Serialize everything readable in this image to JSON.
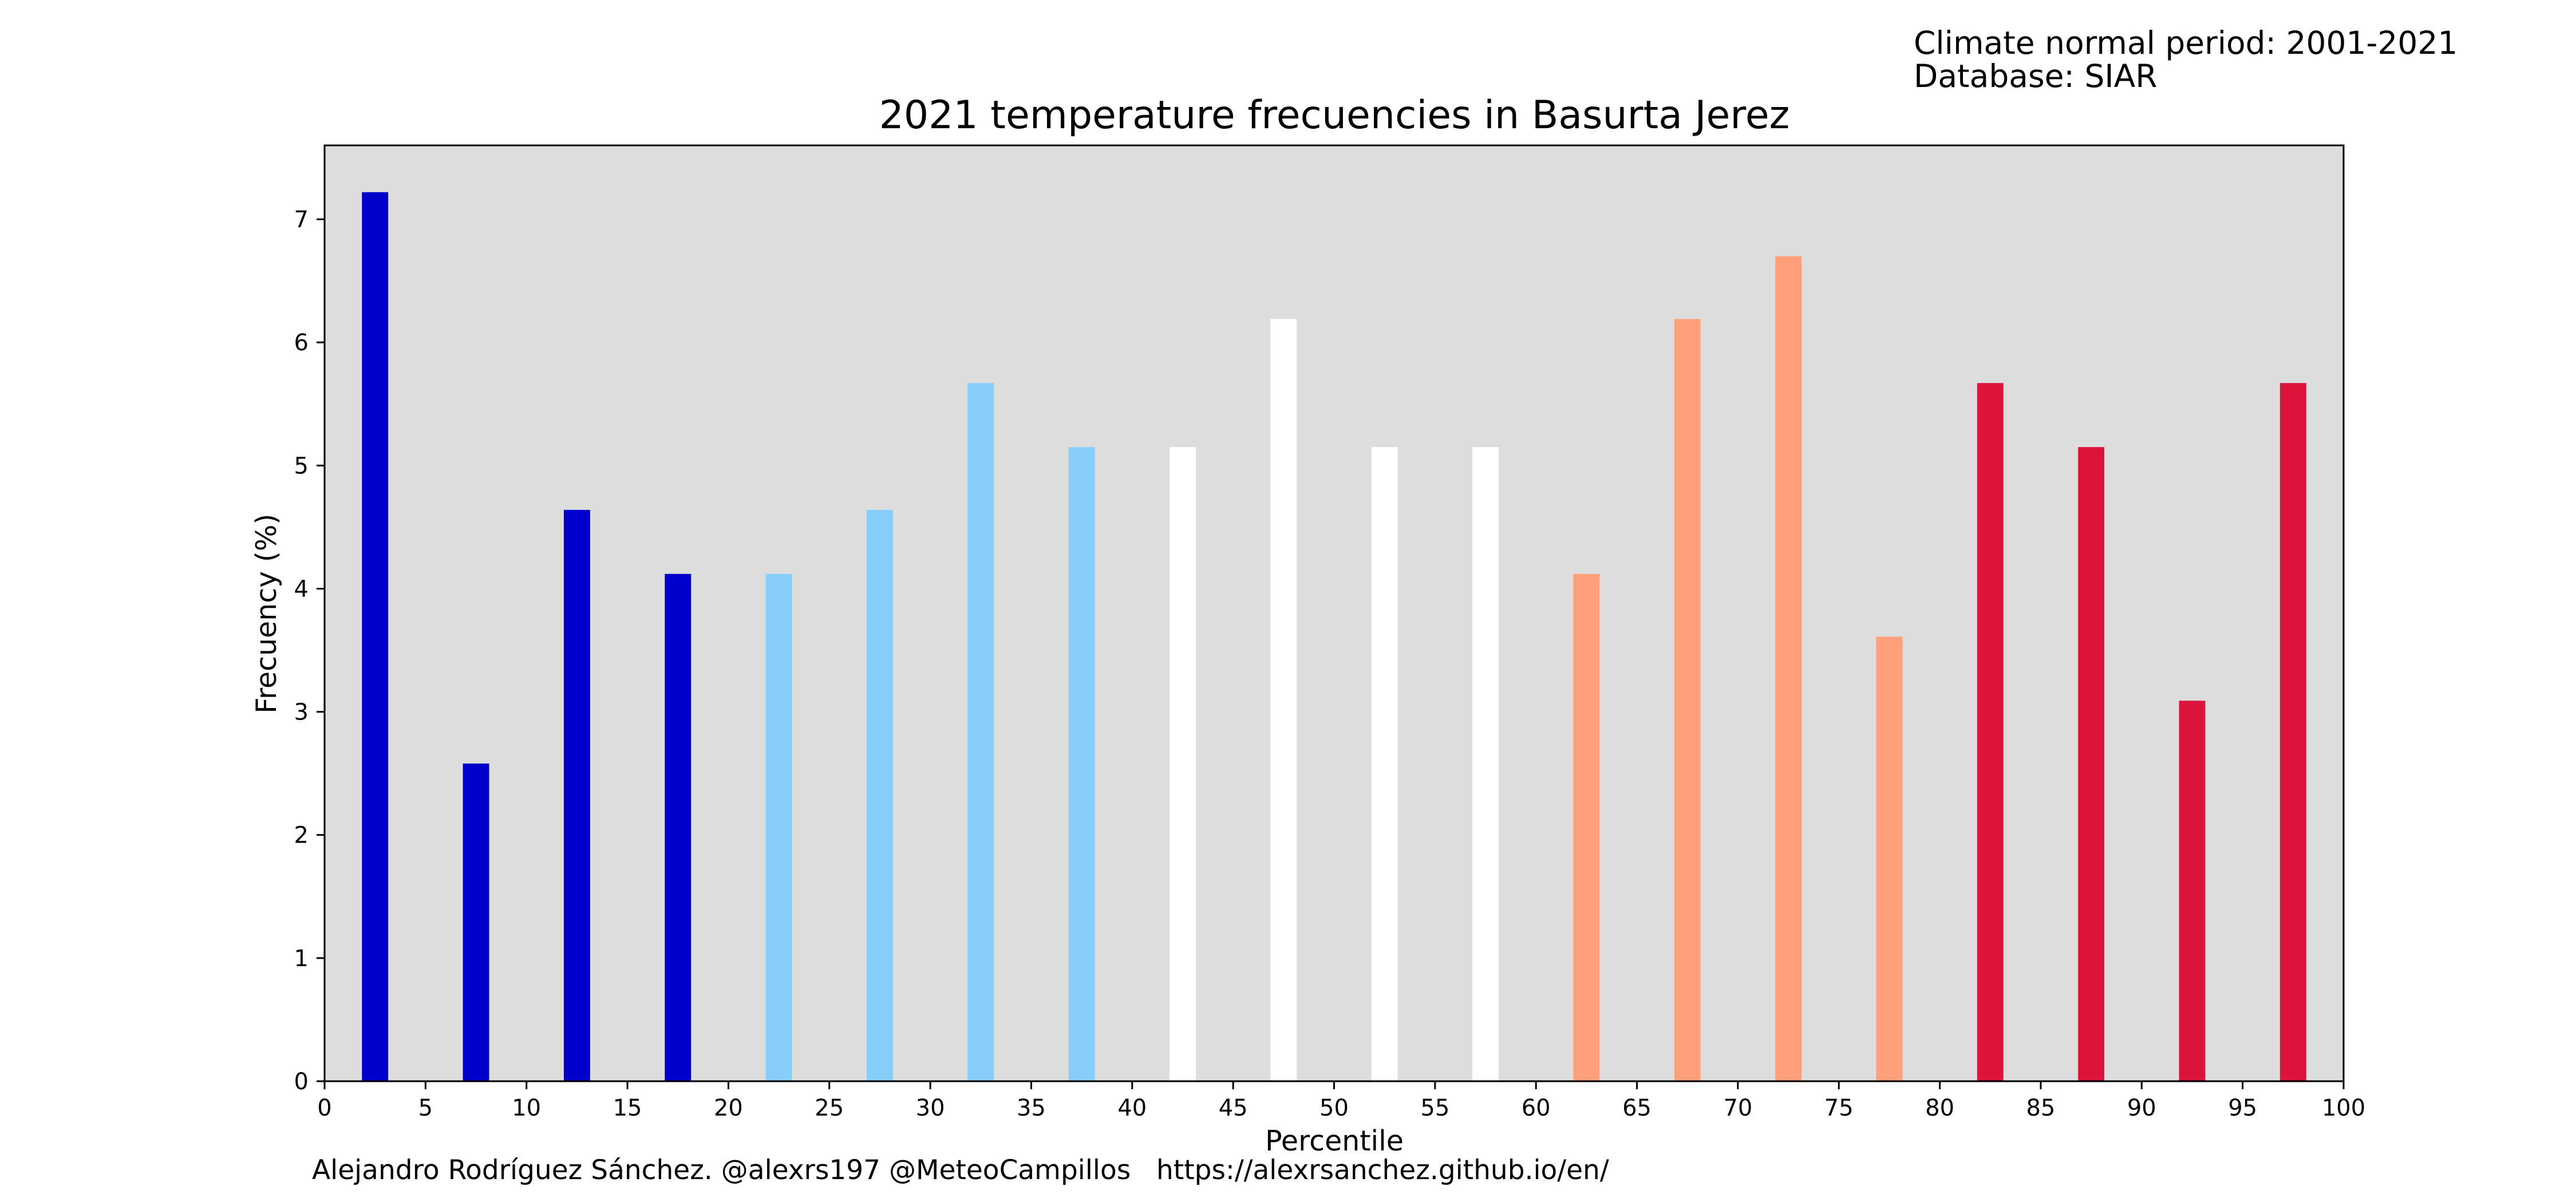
{
  "header": {
    "climate_period": "Climate normal period: 2001-2021",
    "database": "Database: SIAR"
  },
  "footer": {
    "credits": "Alejandro Rodríguez Sánchez. @alexrs197 @MeteoCampillos   https://alexrsanchez.github.io/en/"
  },
  "chart_data": {
    "type": "bar",
    "title": "2021 temperature frecuencies in Basurta Jerez",
    "xlabel": "Percentile",
    "ylabel": "Frecuency (%)",
    "xlim": [
      0,
      100
    ],
    "ylim": [
      0,
      7.6
    ],
    "x_ticks": [
      0,
      5,
      10,
      15,
      20,
      25,
      30,
      35,
      40,
      45,
      50,
      55,
      60,
      65,
      70,
      75,
      80,
      85,
      90,
      95,
      100
    ],
    "y_ticks": [
      0,
      1,
      2,
      3,
      4,
      5,
      6,
      7
    ],
    "grid": false,
    "background_color": "#dddddd",
    "bar_width": 1.3,
    "x": [
      2.5,
      7.5,
      12.5,
      17.5,
      22.5,
      27.5,
      32.5,
      37.5,
      42.5,
      47.5,
      52.5,
      57.5,
      62.5,
      67.5,
      72.5,
      77.5,
      82.5,
      87.5,
      92.5,
      97.5
    ],
    "values": [
      7.22,
      2.58,
      4.64,
      4.12,
      4.12,
      4.64,
      5.67,
      5.15,
      5.15,
      6.19,
      5.15,
      5.15,
      4.12,
      6.19,
      6.7,
      3.61,
      5.67,
      5.15,
      3.09,
      5.67
    ],
    "colors": [
      "#0000cd",
      "#0000cd",
      "#0000cd",
      "#0000cd",
      "#87cefa",
      "#87cefa",
      "#87cefa",
      "#87cefa",
      "#ffffff",
      "#ffffff",
      "#ffffff",
      "#ffffff",
      "#ffa07a",
      "#ffa07a",
      "#ffa07a",
      "#ffa07a",
      "#dc143c",
      "#dc143c",
      "#dc143c",
      "#dc143c"
    ]
  }
}
